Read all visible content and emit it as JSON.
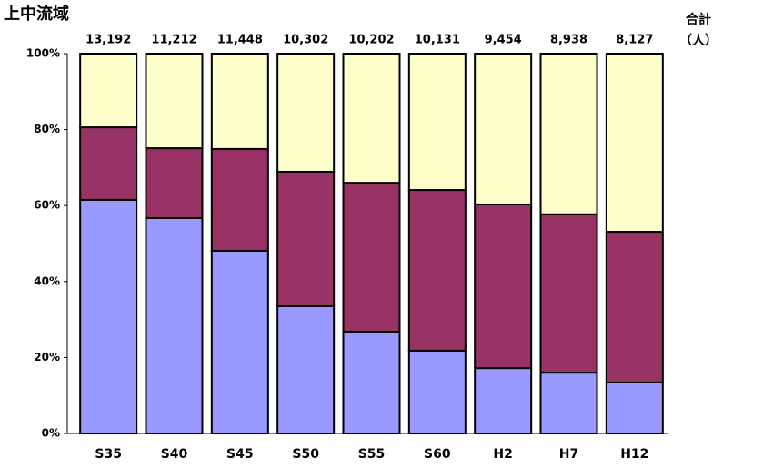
{
  "chart_data": {
    "type": "stacked-bar-100",
    "title": "上中流域",
    "categories": [
      "S35",
      "S40",
      "S45",
      "S50",
      "S55",
      "S60",
      "H2",
      "H7",
      "H12"
    ],
    "series": [
      {
        "color": "#9999ff",
        "values": [
          61.5,
          56.7,
          48.1,
          33.5,
          26.8,
          21.8,
          17.2,
          16.0,
          13.4
        ]
      },
      {
        "color": "#993366",
        "values": [
          19.1,
          18.4,
          26.8,
          35.4,
          39.2,
          42.3,
          43.1,
          41.7,
          39.7
        ]
      },
      {
        "color": "#ffffcc",
        "values": [
          19.4,
          24.9,
          25.1,
          31.1,
          34.0,
          35.9,
          39.7,
          42.3,
          46.9
        ]
      }
    ],
    "totals_title": [
      "合計",
      "（人）"
    ],
    "totals": [
      {
        "value": 13192,
        "label": "13,192"
      },
      {
        "value": 11212,
        "label": "11,212"
      },
      {
        "value": 11448,
        "label": "11,448"
      },
      {
        "value": 10302,
        "label": "10,302"
      },
      {
        "value": 10202,
        "label": "10,202"
      },
      {
        "value": 10131,
        "label": "10,131"
      },
      {
        "value": 9454,
        "label": "9,454"
      },
      {
        "value": 8938,
        "label": "8,938"
      },
      {
        "value": 8127,
        "label": "8,127"
      }
    ],
    "ylim": [
      0,
      100
    ],
    "yticks": [
      {
        "value": 0,
        "label": "0%"
      },
      {
        "value": 20,
        "label": "20%"
      },
      {
        "value": 40,
        "label": "40%"
      },
      {
        "value": 60,
        "label": "60%"
      },
      {
        "value": 80,
        "label": "80%"
      },
      {
        "value": 100,
        "label": "100%"
      }
    ],
    "grid": false
  }
}
